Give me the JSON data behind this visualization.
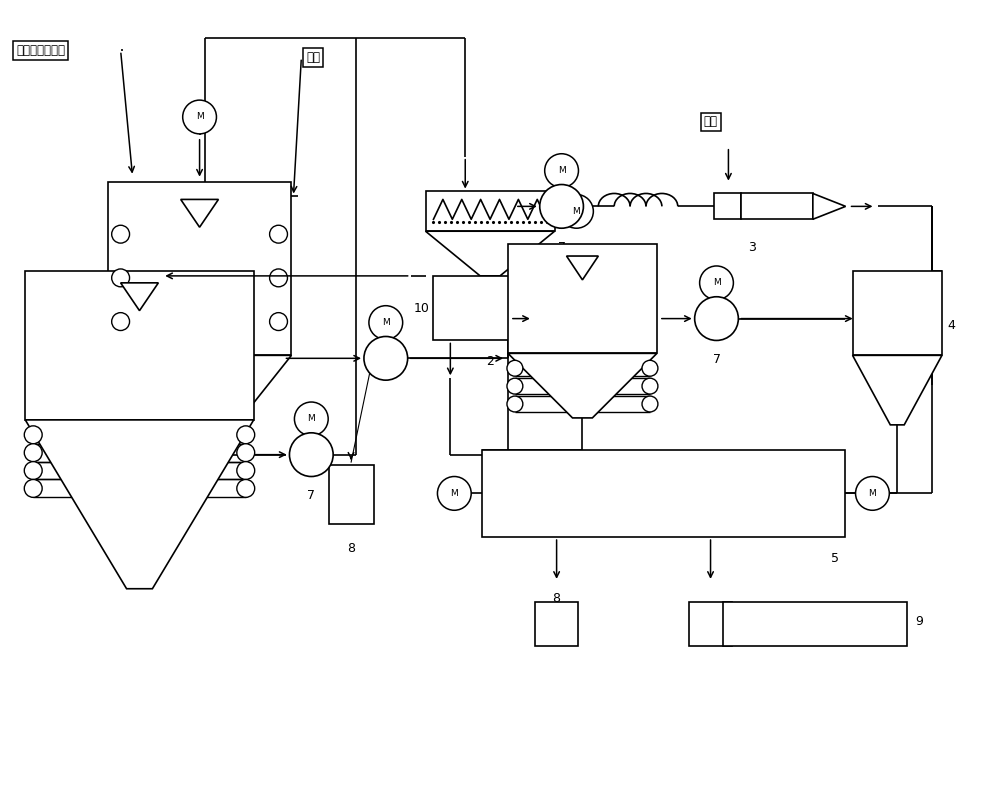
{
  "bg_color": "#ffffff",
  "line_color": "#000000",
  "labels": {
    "organic_waste": "有机垃圾渗滤液",
    "steam1": "蒸汽",
    "steam2": "蒸汽"
  }
}
